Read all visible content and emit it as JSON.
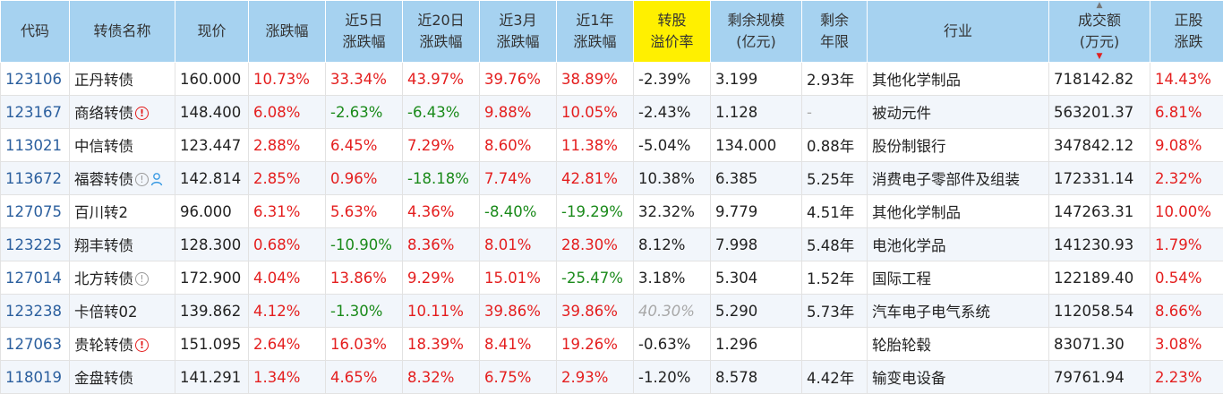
{
  "table": {
    "headers": {
      "code": "代码",
      "name": "转债名称",
      "price": "现价",
      "change": "涨跌幅",
      "chg5d_l1": "近5日",
      "chg5d_l2": "涨跌幅",
      "chg20d_l1": "近20日",
      "chg20d_l2": "涨跌幅",
      "chg3m_l1": "近3月",
      "chg3m_l2": "涨跌幅",
      "chg1y_l1": "近1年",
      "chg1y_l2": "涨跌幅",
      "premium_l1": "转股",
      "premium_l2": "溢价率",
      "size_l1": "剩余规模",
      "size_l2": "(亿元)",
      "years_l1": "剩余",
      "years_l2": "年限",
      "industry": "行业",
      "turnover_l1": "成交额",
      "turnover_l2": "(万元)",
      "stock_l1": "正股",
      "stock_l2": "涨跌"
    },
    "sort": {
      "column": "成交额",
      "direction": "descending"
    },
    "colors": {
      "up": "#e41e1e",
      "down": "#1a8a1a",
      "header_bg": "#a6d2f0",
      "highlight_header": "#fff000",
      "code_link": "#2b5f9e"
    },
    "rows": [
      {
        "code": "123106",
        "name": "正丹转债",
        "flags": [],
        "price": "160.000",
        "change": "10.73%",
        "chg5d": "33.34%",
        "chg20d": "43.97%",
        "chg3m": "39.76%",
        "chg1y": "38.89%",
        "premium": "-2.39%",
        "size": "3.199",
        "years": "2.93年",
        "industry": "其他化学制品",
        "turnover": "718142.82",
        "stock": "14.43%"
      },
      {
        "code": "123167",
        "name": "商络转债",
        "flags": [
          "warn"
        ],
        "price": "148.400",
        "change": "6.08%",
        "chg5d": "-2.63%",
        "chg20d": "-6.43%",
        "chg3m": "9.88%",
        "chg1y": "10.05%",
        "premium": "-2.43%",
        "size": "1.128",
        "years": "-",
        "industry": "被动元件",
        "turnover": "563201.37",
        "stock": "6.81%"
      },
      {
        "code": "113021",
        "name": "中信转债",
        "flags": [],
        "price": "123.447",
        "change": "2.88%",
        "chg5d": "6.45%",
        "chg20d": "7.29%",
        "chg3m": "8.60%",
        "chg1y": "11.38%",
        "premium": "-5.04%",
        "size": "134.000",
        "years": "0.88年",
        "industry": "股份制银行",
        "turnover": "347842.12",
        "stock": "9.08%"
      },
      {
        "code": "113672",
        "name": "福蓉转债",
        "flags": [
          "info",
          "person"
        ],
        "price": "142.814",
        "change": "2.85%",
        "chg5d": "0.96%",
        "chg20d": "-18.18%",
        "chg3m": "7.74%",
        "chg1y": "42.81%",
        "premium": "10.38%",
        "size": "6.385",
        "years": "5.25年",
        "industry": "消费电子零部件及组装",
        "turnover": "172331.14",
        "stock": "2.32%"
      },
      {
        "code": "127075",
        "name": "百川转2",
        "flags": [],
        "price": "96.000",
        "change": "6.31%",
        "chg5d": "5.63%",
        "chg20d": "4.36%",
        "chg3m": "-8.40%",
        "chg1y": "-19.29%",
        "premium": "32.32%",
        "size": "9.779",
        "years": "4.51年",
        "industry": "其他化学制品",
        "turnover": "147263.31",
        "stock": "10.00%"
      },
      {
        "code": "123225",
        "name": "翔丰转债",
        "flags": [],
        "price": "128.300",
        "change": "0.68%",
        "chg5d": "-10.90%",
        "chg20d": "8.36%",
        "chg3m": "8.01%",
        "chg1y": "28.30%",
        "premium": "8.12%",
        "size": "7.998",
        "years": "5.48年",
        "industry": "电池化学品",
        "turnover": "141230.93",
        "stock": "1.79%"
      },
      {
        "code": "127014",
        "name": "北方转债",
        "flags": [
          "info"
        ],
        "price": "172.900",
        "change": "4.04%",
        "chg5d": "13.86%",
        "chg20d": "9.29%",
        "chg3m": "15.01%",
        "chg1y": "-25.47%",
        "premium": "3.18%",
        "size": "5.304",
        "years": "1.52年",
        "industry": "国际工程",
        "turnover": "122189.40",
        "stock": "0.54%"
      },
      {
        "code": "123238",
        "name": "卡倍转02",
        "flags": [],
        "price": "139.862",
        "change": "4.12%",
        "chg5d": "-1.30%",
        "chg20d": "10.11%",
        "chg3m": "39.86%",
        "chg1y": "39.86%",
        "premium": "40.30%",
        "premium_style": "italic",
        "size": "5.290",
        "years": "5.73年",
        "industry": "汽车电子电气系统",
        "turnover": "112058.54",
        "stock": "8.66%"
      },
      {
        "code": "127063",
        "name": "贵轮转债",
        "flags": [
          "warn"
        ],
        "price": "151.095",
        "change": "2.64%",
        "chg5d": "16.03%",
        "chg20d": "18.39%",
        "chg3m": "8.41%",
        "chg1y": "19.26%",
        "premium": "-0.63%",
        "size": "1.296",
        "years": "",
        "industry": "轮胎轮毂",
        "turnover": "83071.30",
        "stock": "3.08%"
      },
      {
        "code": "118019",
        "name": "金盘转债",
        "flags": [],
        "price": "141.291",
        "change": "1.34%",
        "chg5d": "4.65%",
        "chg20d": "8.32%",
        "chg3m": "6.75%",
        "chg1y": "2.93%",
        "premium": "-1.20%",
        "size": "8.578",
        "years": "4.42年",
        "industry": "输变电设备",
        "turnover": "79761.94",
        "stock": "2.23%"
      }
    ]
  }
}
